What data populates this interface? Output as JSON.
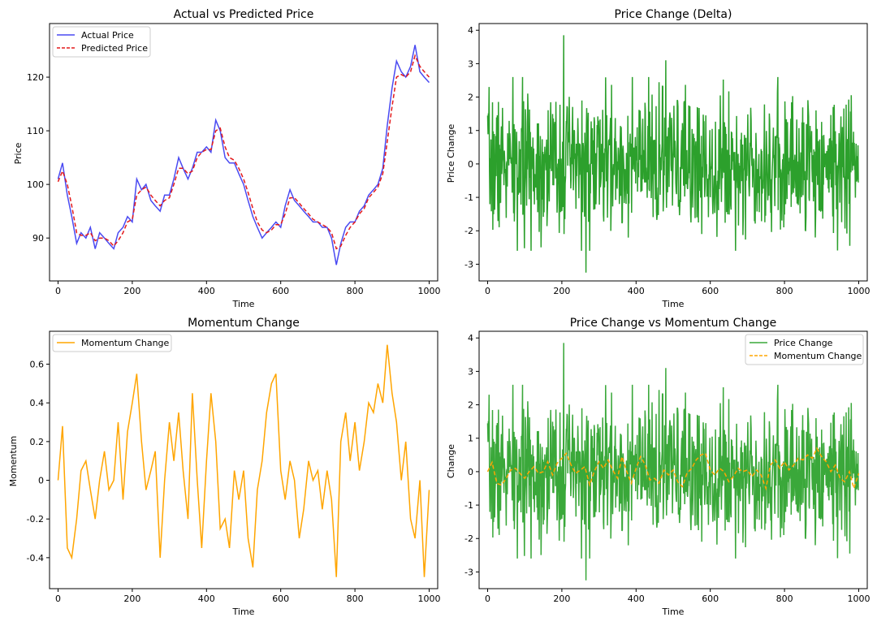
{
  "chart_data": [
    {
      "type": "line",
      "title": "Actual vs Predicted Price",
      "xlabel": "Time",
      "ylabel": "Price",
      "xlim": [
        -23,
        1023
      ],
      "ylim": [
        82,
        130
      ],
      "xticks": [
        0,
        200,
        400,
        600,
        800,
        1000
      ],
      "yticks": [
        90,
        100,
        110,
        120
      ],
      "legend": "upper-left",
      "series": [
        {
          "name": "Actual Price",
          "color": "#4a4af2",
          "style": "solid",
          "x": [
            0,
            12,
            25,
            37,
            50,
            62,
            75,
            87,
            100,
            112,
            125,
            137,
            150,
            162,
            175,
            187,
            200,
            212,
            225,
            237,
            250,
            262,
            275,
            287,
            300,
            312,
            325,
            337,
            350,
            362,
            375,
            387,
            400,
            412,
            425,
            437,
            450,
            462,
            475,
            487,
            500,
            512,
            525,
            537,
            550,
            562,
            575,
            587,
            600,
            612,
            625,
            637,
            650,
            662,
            675,
            687,
            700,
            712,
            725,
            737,
            750,
            762,
            775,
            787,
            800,
            812,
            825,
            837,
            850,
            862,
            875,
            887,
            900,
            912,
            925,
            937,
            950,
            962,
            975,
            987,
            1000
          ],
          "values": [
            101,
            104,
            98,
            94,
            89,
            91,
            90,
            92,
            88,
            91,
            90,
            89,
            88,
            91,
            92,
            94,
            93,
            101,
            99,
            100,
            97,
            96,
            95,
            98,
            98,
            101,
            105,
            103,
            101,
            103,
            106,
            106,
            107,
            106,
            112,
            110,
            105,
            104,
            104,
            102,
            100,
            97,
            94,
            92,
            90,
            91,
            92,
            93,
            92,
            96,
            99,
            97,
            96,
            95,
            94,
            93,
            93,
            92,
            92,
            90,
            85,
            89,
            92,
            93,
            93,
            95,
            96,
            98,
            99,
            100,
            103,
            111,
            118,
            123,
            121,
            120,
            122,
            126,
            121,
            120,
            119
          ]
        },
        {
          "name": "Predicted Price",
          "color": "#e31a1c",
          "style": "dashed",
          "x": [
            0,
            12,
            25,
            37,
            50,
            62,
            75,
            87,
            100,
            112,
            125,
            137,
            150,
            162,
            175,
            187,
            200,
            212,
            225,
            237,
            250,
            262,
            275,
            287,
            300,
            312,
            325,
            337,
            350,
            362,
            375,
            387,
            400,
            412,
            425,
            437,
            450,
            462,
            475,
            487,
            500,
            512,
            525,
            537,
            550,
            562,
            575,
            587,
            600,
            612,
            625,
            637,
            650,
            662,
            675,
            687,
            700,
            712,
            725,
            737,
            750,
            762,
            775,
            787,
            800,
            812,
            825,
            837,
            850,
            862,
            875,
            887,
            900,
            912,
            925,
            937,
            950,
            962,
            975,
            987,
            1000
          ],
          "values": [
            100.5,
            102.5,
            100,
            96,
            91,
            90.5,
            90.5,
            91,
            89.5,
            90,
            90,
            89.5,
            88.5,
            89.5,
            91,
            93,
            93.5,
            98,
            99,
            99.5,
            98,
            97,
            96,
            97,
            97.5,
            100,
            103,
            103,
            102,
            102.5,
            105,
            106,
            106.5,
            106.5,
            110,
            110.5,
            107,
            105,
            104.5,
            103,
            101,
            98.5,
            95.5,
            93,
            91.5,
            91,
            91.5,
            92.5,
            92.5,
            94.5,
            97.5,
            97.5,
            96.5,
            95.5,
            94.5,
            93.5,
            93,
            92.5,
            92,
            91,
            88,
            88.5,
            90.5,
            92,
            93,
            94.5,
            95.5,
            97.5,
            98.5,
            99.5,
            102,
            108,
            114.5,
            120,
            120.5,
            120,
            121,
            124,
            122,
            121,
            120
          ]
        }
      ],
      "legend_entries": [
        "Actual Price",
        "Predicted Price"
      ]
    },
    {
      "type": "line",
      "title": "Price Change (Delta)",
      "xlabel": "Time",
      "ylabel": "Price Change",
      "xlim": [
        -23,
        1023
      ],
      "ylim": [
        -3.5,
        4.2
      ],
      "xticks": [
        0,
        200,
        400,
        600,
        800,
        1000
      ],
      "yticks": [
        -3,
        -2,
        -1,
        0,
        1,
        2,
        3,
        4
      ],
      "series": [
        {
          "name": "Price Change",
          "color": "#2ca02c",
          "style": "solid",
          "noise": {
            "seed": 7,
            "n": 1000,
            "sd": 1.0,
            "spikes": [
              [
                205,
                3.85
              ],
              [
                265,
                -3.25
              ],
              [
                480,
                3.1
              ],
              [
                80,
                -2.6
              ]
            ]
          }
        }
      ]
    },
    {
      "type": "line",
      "title": "Momentum Change",
      "xlabel": "Time",
      "ylabel": "Momentum",
      "xlim": [
        -23,
        1023
      ],
      "ylim": [
        -0.56,
        0.77
      ],
      "xticks": [
        0,
        200,
        400,
        600,
        800,
        1000
      ],
      "yticks": [
        -0.4,
        -0.2,
        0.0,
        0.2,
        0.4,
        0.6
      ],
      "legend": "upper-left",
      "series": [
        {
          "name": "Momentum Change",
          "color": "#ffa500",
          "style": "solid",
          "x": [
            0,
            12,
            25,
            37,
            50,
            62,
            75,
            87,
            100,
            112,
            125,
            137,
            150,
            162,
            175,
            187,
            200,
            212,
            225,
            237,
            250,
            262,
            275,
            287,
            300,
            312,
            325,
            337,
            350,
            362,
            375,
            387,
            400,
            412,
            425,
            437,
            450,
            462,
            475,
            487,
            500,
            512,
            525,
            537,
            550,
            562,
            575,
            587,
            600,
            612,
            625,
            637,
            650,
            662,
            675,
            687,
            700,
            712,
            725,
            737,
            750,
            762,
            775,
            787,
            800,
            812,
            825,
            837,
            850,
            862,
            875,
            887,
            900,
            912,
            925,
            937,
            950,
            962,
            975,
            987,
            1000
          ],
          "values": [
            0.0,
            0.28,
            -0.35,
            -0.4,
            -0.2,
            0.05,
            0.1,
            -0.05,
            -0.2,
            0.0,
            0.15,
            -0.05,
            0.0,
            0.3,
            -0.1,
            0.25,
            0.4,
            0.55,
            0.2,
            -0.05,
            0.05,
            0.15,
            -0.4,
            0.0,
            0.3,
            0.1,
            0.35,
            0.05,
            -0.2,
            0.45,
            0.0,
            -0.35,
            0.1,
            0.45,
            0.2,
            -0.25,
            -0.2,
            -0.35,
            0.05,
            -0.1,
            0.05,
            -0.3,
            -0.45,
            -0.05,
            0.1,
            0.35,
            0.5,
            0.55,
            0.05,
            -0.1,
            0.1,
            0.0,
            -0.3,
            -0.15,
            0.1,
            0.0,
            0.05,
            -0.15,
            0.05,
            -0.1,
            -0.5,
            0.2,
            0.35,
            0.1,
            0.3,
            0.05,
            0.2,
            0.4,
            0.35,
            0.5,
            0.4,
            0.7,
            0.45,
            0.3,
            0.0,
            0.2,
            -0.2,
            -0.3,
            0.0,
            -0.5,
            -0.05
          ]
        }
      ],
      "legend_entries": [
        "Momentum Change"
      ]
    },
    {
      "type": "line",
      "title": "Price Change vs Momentum Change",
      "xlabel": "Time",
      "ylabel": "Change",
      "xlim": [
        -23,
        1023
      ],
      "ylim": [
        -3.5,
        4.2
      ],
      "xticks": [
        0,
        200,
        400,
        600,
        800,
        1000
      ],
      "yticks": [
        -3,
        -2,
        -1,
        0,
        1,
        2,
        3,
        4
      ],
      "legend": "upper-right",
      "series": [
        {
          "name": "Price Change",
          "color": "#3aa83a",
          "style": "solid",
          "same_as": "Price Change (Delta)"
        },
        {
          "name": "Momentum Change",
          "color": "#ffa500",
          "style": "dashed",
          "same_as": "Momentum Change"
        }
      ],
      "legend_entries": [
        "Price Change",
        "Momentum Change"
      ]
    }
  ]
}
